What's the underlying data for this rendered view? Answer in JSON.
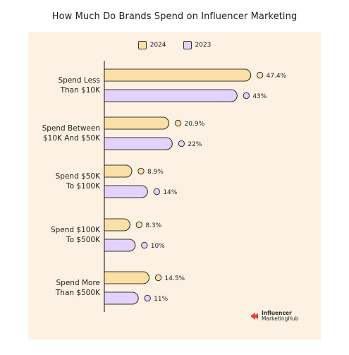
{
  "chart_data": {
    "type": "bar",
    "orientation": "horizontal",
    "title": "How Much Do Brands Spend on Influencer Marketing",
    "categories": [
      "Spend Less Than $10K",
      "Spend Between $10K And $50K",
      "Spend $50K To $100K",
      "Spend $100K To $500K",
      "Spend More Than $500K"
    ],
    "category_lines": [
      [
        "Spend Less",
        "Than $10K"
      ],
      [
        "Spend Between",
        "$10K And $50K"
      ],
      [
        "Spend $50K",
        "To $100K"
      ],
      [
        "Spend $100K",
        "To $500K"
      ],
      [
        "Spend More",
        "Than $500K"
      ]
    ],
    "series": [
      {
        "name": "2024",
        "values": [
          47.4,
          20.9,
          8.9,
          8.3,
          14.5
        ],
        "color": "#fbe0a6"
      },
      {
        "name": "2023",
        "values": [
          43,
          22,
          14,
          10,
          11
        ],
        "color": "#e3d2fb"
      }
    ],
    "value_labels": [
      [
        "47.4%",
        "20.9%",
        "8.9%",
        "8.3%",
        "14.5%"
      ],
      [
        "43%",
        "22%",
        "14%",
        "10%",
        "11%"
      ]
    ],
    "xlim": [
      0,
      50
    ],
    "grid": false,
    "legend_position": "top-center"
  },
  "colors": {
    "panel_background": "#fcf1e2",
    "bar_outline": "#333333",
    "brand_red": "#e4423f"
  },
  "branding": {
    "logo_line1": "Influencer",
    "logo_line2": "MarketingHub",
    "logo_icon": "influencer-marketinghub-logo-icon"
  }
}
